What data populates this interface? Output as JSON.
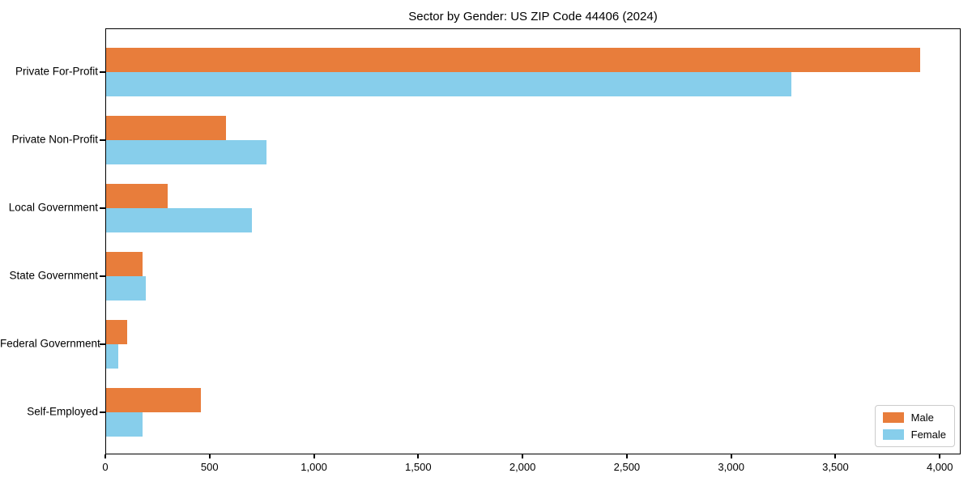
{
  "title": "Sector by Gender: US ZIP Code 44406 (2024)",
  "chart_data": {
    "type": "bar",
    "orientation": "horizontal",
    "title": "Sector by Gender: US ZIP Code 44406 (2024)",
    "xlabel": "",
    "ylabel": "",
    "categories": [
      "Private For-Profit",
      "Private Non-Profit",
      "Local Government",
      "State Government",
      "Federal Government",
      "Self-Employed"
    ],
    "series": [
      {
        "name": "Male",
        "color": "#e87d3b",
        "values": [
          3910,
          575,
          295,
          175,
          100,
          455
        ]
      },
      {
        "name": "Female",
        "color": "#87ceeb",
        "values": [
          3290,
          770,
          700,
          190,
          60,
          175
        ]
      }
    ],
    "xlim": [
      0,
      4100
    ],
    "xticks": [
      0,
      500,
      1000,
      1500,
      2000,
      2500,
      3000,
      3500,
      4000
    ],
    "xtick_labels": [
      "0",
      "500",
      "1,000",
      "1,500",
      "2,000",
      "2,500",
      "3,000",
      "3,500",
      "4,000"
    ],
    "grid": false,
    "legend_position": "lower right"
  }
}
